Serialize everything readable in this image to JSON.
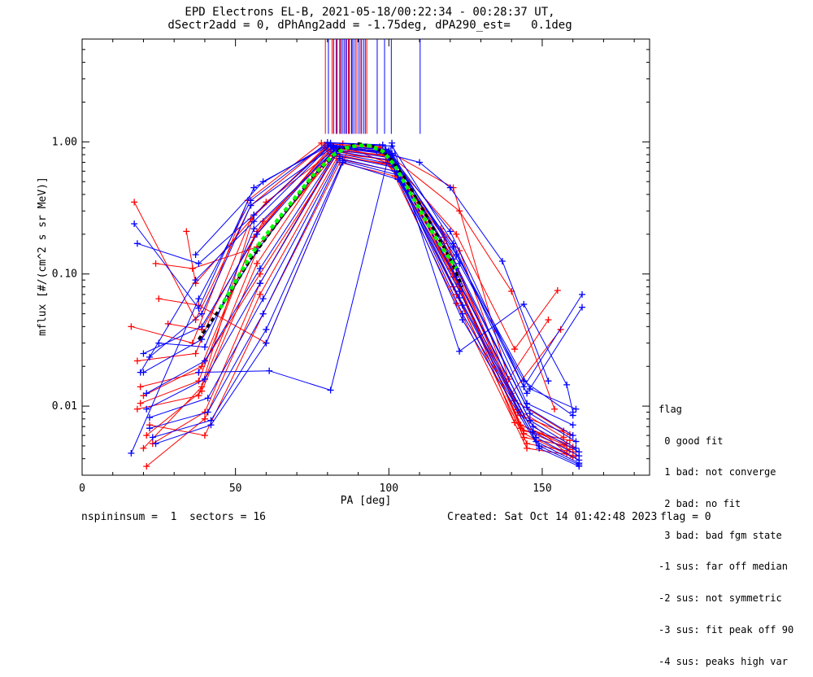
{
  "titles": {
    "line1": "EPD Electrons EL-B, 2021-05-18/00:22:34 - 00:28:37 UT,",
    "line2": "dSectr2add = 0, dPhAng2add = -1.75deg, dPA290_est=   0.1deg"
  },
  "legend": {
    "title": "flag",
    "items": [
      " 0 good fit",
      " 1 bad: not converge",
      " 2 bad: no fit",
      " 3 bad: bad fgm state",
      "-1 sus: far off median",
      "-2 sus: not symmetric",
      "-3 sus: fit peak off 90",
      "-4 sus: peaks high var"
    ]
  },
  "footer": {
    "left": "nspininsum =  1  sectors = 16",
    "created": "Created: Sat Oct 14 01:42:48 2023",
    "flag": "flag = 0"
  },
  "colors": {
    "red_series": "#ff0000",
    "blue_series": "#0000ff",
    "median": "#000000",
    "fit": "#00ff00"
  },
  "chart_data": {
    "type": "line",
    "title": "EPD Electrons EL-B, 2021-05-18/00:22:34 - 00:28:37 UT,",
    "subtitle": "dSectr2add = 0, dPhAng2add = -1.75deg, dPA290_est=   0.1deg",
    "xlabel": "PA [deg]",
    "ylabel": "mflux [#/(cm^2 s sr MeV)]",
    "xlim": [
      0,
      185
    ],
    "ylim": [
      0.003,
      6.0
    ],
    "yscale": "log",
    "xticks": [
      0,
      50,
      100,
      150
    ],
    "yticks": [
      0.01,
      0.1,
      1.0
    ],
    "xtick_labels": [
      "0",
      "50",
      "100",
      "150"
    ],
    "ytick_labels": [
      "0.01",
      "0.10",
      "1.00"
    ],
    "grid": false,
    "legend_position": "right",
    "marker": "+",
    "peak_markers": {
      "red": [
        79.3,
        81.5,
        82.8,
        84.3,
        85.9,
        86.8,
        87.8,
        89.6,
        90.9,
        92.8
      ],
      "blue": [
        80.3,
        82.0,
        83.1,
        84.0,
        84.8,
        85.4,
        86.2,
        87.1,
        87.9,
        88.3,
        89.0,
        90.3,
        91.0,
        91.7,
        92.3,
        96.2,
        98.6,
        100.8,
        110.2
      ]
    },
    "series": [
      {
        "color": "red",
        "x": [
          17,
          37,
          55,
          79,
          98,
          118,
          142,
          158
        ],
        "y": [
          0.35,
          0.045,
          0.33,
          0.95,
          0.82,
          0.19,
          0.009,
          0.0044
        ]
      },
      {
        "color": "red",
        "x": [
          18,
          38,
          56,
          80,
          99,
          119,
          143,
          158
        ],
        "y": [
          0.0095,
          0.012,
          0.28,
          0.92,
          0.85,
          0.13,
          0.0072,
          0.005
        ]
      },
      {
        "color": "red",
        "x": [
          19,
          38,
          57,
          81,
          100,
          120,
          143,
          159
        ],
        "y": [
          0.014,
          0.018,
          0.21,
          0.88,
          0.78,
          0.11,
          0.0085,
          0.0061
        ]
      },
      {
        "color": "red",
        "x": [
          20,
          39,
          57,
          82,
          100,
          121,
          144,
          159
        ],
        "y": [
          0.0048,
          0.014,
          0.15,
          0.85,
          0.72,
          0.095,
          0.0065,
          0.0055
        ]
      },
      {
        "color": "red",
        "x": [
          20,
          39,
          58,
          83,
          101,
          121,
          144,
          160
        ],
        "y": [
          0.012,
          0.02,
          0.1,
          0.8,
          0.66,
          0.08,
          0.0058,
          0.0049
        ]
      },
      {
        "color": "red",
        "x": [
          21,
          40,
          58,
          83,
          102,
          122,
          145,
          160
        ],
        "y": [
          0.0035,
          0.008,
          0.07,
          0.75,
          0.6,
          0.07,
          0.0052,
          0.0045
        ]
      },
      {
        "color": "red",
        "x": [
          22,
          40,
          59,
          84,
          102,
          122,
          145,
          161
        ],
        "y": [
          0.0072,
          0.006,
          0.05,
          0.7,
          0.55,
          0.06,
          0.0048,
          0.0042
        ]
      },
      {
        "color": "red",
        "x": [
          16,
          36,
          54,
          78,
          97,
          117,
          141,
          157
        ],
        "y": [
          0.04,
          0.03,
          0.36,
          0.98,
          0.9,
          0.22,
          0.011,
          0.0065
        ]
      },
      {
        "color": "red",
        "x": [
          18,
          37,
          55,
          79,
          98,
          118,
          142,
          157
        ],
        "y": [
          0.022,
          0.025,
          0.26,
          0.9,
          0.84,
          0.17,
          0.0094,
          0.0058
        ]
      },
      {
        "color": "red",
        "x": [
          19,
          38,
          56,
          80,
          99,
          119,
          141,
          158
        ],
        "y": [
          0.0105,
          0.0155,
          0.19,
          0.86,
          0.8,
          0.14,
          0.0075,
          0.0052
        ]
      },
      {
        "color": "red",
        "x": [
          21,
          39,
          57,
          81,
          99,
          120,
          143,
          159
        ],
        "y": [
          0.006,
          0.013,
          0.12,
          0.82,
          0.74,
          0.12,
          0.0068,
          0.0047
        ]
      },
      {
        "color": "red",
        "x": [
          23,
          40,
          58,
          82,
          100,
          121,
          144,
          160
        ],
        "y": [
          0.0052,
          0.009,
          0.085,
          0.78,
          0.68,
          0.1,
          0.0062,
          0.0041
        ]
      },
      {
        "color": "red",
        "x": [
          34,
          37,
          60,
          85,
          97,
          121,
          139,
          152
        ],
        "y": [
          0.21,
          0.085,
          0.35,
          0.97,
          0.92,
          0.45,
          0.016,
          0.045
        ]
      },
      {
        "color": "red",
        "x": [
          28,
          39,
          59,
          84,
          98,
          123,
          140,
          154
        ],
        "y": [
          0.042,
          0.038,
          0.25,
          0.93,
          0.87,
          0.3,
          0.074,
          0.0095
        ]
      },
      {
        "color": "red",
        "x": [
          24,
          36,
          57,
          84,
          100,
          122,
          141,
          155
        ],
        "y": [
          0.12,
          0.11,
          0.16,
          0.89,
          0.77,
          0.2,
          0.027,
          0.075
        ]
      },
      {
        "color": "red",
        "x": [
          25,
          38,
          60,
          87,
          99,
          123,
          140,
          156
        ],
        "y": [
          0.065,
          0.058,
          0.03,
          0.9,
          0.7,
          0.15,
          0.0125,
          0.038
        ]
      },
      {
        "color": "blue",
        "x": [
          17,
          38,
          56,
          81,
          101,
          121,
          145,
          160
        ],
        "y": [
          0.24,
          0.055,
          0.45,
          0.98,
          0.93,
          0.17,
          0.0105,
          0.0072
        ]
      },
      {
        "color": "blue",
        "x": [
          18,
          38,
          56,
          81,
          100,
          121,
          145,
          160
        ],
        "y": [
          0.17,
          0.12,
          0.28,
          0.95,
          0.86,
          0.13,
          0.0098,
          0.006
        ]
      },
      {
        "color": "blue",
        "x": [
          20,
          39,
          57,
          82,
          101,
          122,
          146,
          161
        ],
        "y": [
          0.025,
          0.04,
          0.2,
          0.91,
          0.8,
          0.11,
          0.0088,
          0.0054
        ]
      },
      {
        "color": "blue",
        "x": [
          20,
          39,
          57,
          82,
          100,
          122,
          146,
          161
        ],
        "y": [
          0.018,
          0.032,
          0.15,
          0.88,
          0.76,
          0.095,
          0.0078,
          0.0048
        ]
      },
      {
        "color": "blue",
        "x": [
          21,
          40,
          58,
          83,
          101,
          123,
          147,
          162
        ],
        "y": [
          0.0125,
          0.022,
          0.11,
          0.85,
          0.72,
          0.084,
          0.007,
          0.0045
        ]
      },
      {
        "color": "blue",
        "x": [
          21,
          40,
          58,
          83,
          101,
          123,
          147,
          162
        ],
        "y": [
          0.0095,
          0.016,
          0.085,
          0.82,
          0.68,
          0.074,
          0.0064,
          0.0042
        ]
      },
      {
        "color": "blue",
        "x": [
          22,
          41,
          59,
          84,
          102,
          123,
          148,
          162
        ],
        "y": [
          0.0082,
          0.0115,
          0.065,
          0.78,
          0.64,
          0.066,
          0.0058,
          0.0039
        ]
      },
      {
        "color": "blue",
        "x": [
          22,
          41,
          59,
          84,
          102,
          124,
          148,
          162
        ],
        "y": [
          0.0068,
          0.009,
          0.05,
          0.75,
          0.6,
          0.058,
          0.0054,
          0.0037
        ]
      },
      {
        "color": "blue",
        "x": [
          23,
          42,
          60,
          85,
          103,
          124,
          149,
          162
        ],
        "y": [
          0.0058,
          0.0078,
          0.038,
          0.72,
          0.56,
          0.05,
          0.005,
          0.0036
        ]
      },
      {
        "color": "blue",
        "x": [
          24,
          42,
          60,
          85,
          103,
          124,
          149,
          162
        ],
        "y": [
          0.0052,
          0.0072,
          0.03,
          0.7,
          0.52,
          0.045,
          0.0048,
          0.0035
        ]
      },
      {
        "color": "blue",
        "x": [
          16,
          38,
          55,
          80,
          98,
          120,
          144,
          163
        ],
        "y": [
          0.0044,
          0.065,
          0.36,
          0.99,
          0.95,
          0.21,
          0.014,
          0.07
        ]
      },
      {
        "color": "blue",
        "x": [
          19,
          37,
          56,
          81,
          99,
          121,
          145,
          163
        ],
        "y": [
          0.018,
          0.09,
          0.25,
          0.94,
          0.88,
          0.16,
          0.0125,
          0.056
        ]
      },
      {
        "color": "blue",
        "x": [
          22,
          39,
          55,
          82,
          100,
          122,
          146,
          161
        ],
        "y": [
          0.0235,
          0.05,
          0.33,
          0.92,
          0.84,
          0.14,
          0.0135,
          0.0095
        ]
      },
      {
        "color": "blue",
        "x": [
          25,
          40,
          56,
          83,
          101,
          123,
          144,
          160
        ],
        "y": [
          0.03,
          0.028,
          0.22,
          0.9,
          0.82,
          0.12,
          0.0155,
          0.0085
        ]
      },
      {
        "color": "blue",
        "x": [
          37,
          59,
          81,
          96,
          110,
          120,
          137,
          152
        ],
        "y": [
          0.14,
          0.5,
          0.95,
          0.85,
          0.7,
          0.45,
          0.125,
          0.0155
        ]
      },
      {
        "color": "blue",
        "x": [
          38,
          61,
          81,
          101,
          123,
          144,
          158,
          160
        ],
        "y": [
          0.018,
          0.0185,
          0.0132,
          0.98,
          0.026,
          0.059,
          0.0145,
          0.009
        ]
      }
    ],
    "median": {
      "x": [
        38,
        45,
        55,
        65,
        75,
        84,
        90,
        95,
        100,
        105,
        110,
        115,
        120,
        124
      ],
      "y": [
        0.032,
        0.055,
        0.13,
        0.27,
        0.54,
        0.88,
        0.97,
        0.92,
        0.78,
        0.54,
        0.34,
        0.21,
        0.13,
        0.08
      ]
    },
    "fit": {
      "x": [
        45,
        55,
        65,
        75,
        82,
        86,
        90,
        94,
        98,
        102,
        106,
        110,
        114,
        118,
        122
      ],
      "y": [
        0.055,
        0.14,
        0.28,
        0.55,
        0.8,
        0.9,
        0.94,
        0.93,
        0.85,
        0.66,
        0.45,
        0.31,
        0.21,
        0.15,
        0.11
      ]
    }
  }
}
